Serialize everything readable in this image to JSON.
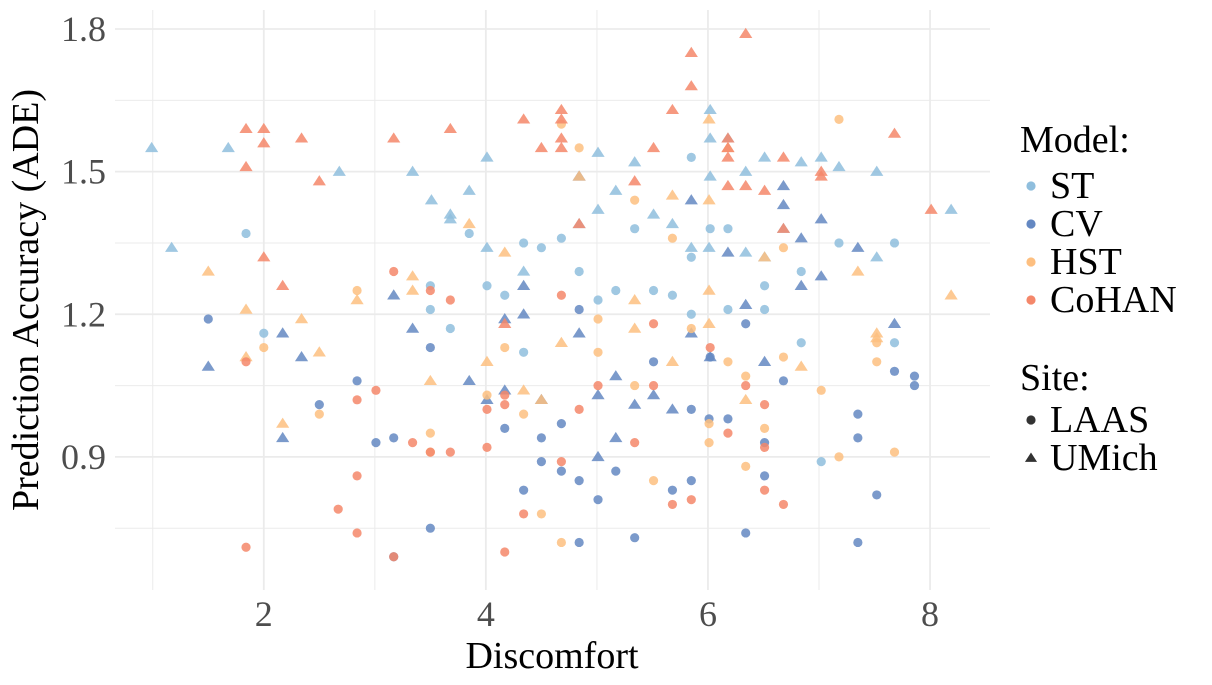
{
  "chart_data": {
    "type": "scatter",
    "xlabel": "Discomfort",
    "ylabel": "Prediction Accuracy (ADE)",
    "xlim": [
      0.66,
      8.54
    ],
    "ylim": [
      0.62,
      1.84
    ],
    "xticks": [
      2,
      4,
      6,
      8
    ],
    "yticks": [
      0.9,
      1.2,
      1.5,
      1.8
    ],
    "xtick_labels": [
      "2",
      "4",
      "6",
      "8"
    ],
    "ytick_labels": [
      "0.9",
      "1.2",
      "1.5",
      "1.8"
    ],
    "grid": true,
    "legend_position": "right",
    "legend": {
      "color_title": "Model:",
      "shape_title": "Site:",
      "shapes": [
        {
          "name": "LAAS",
          "shape": "circle"
        },
        {
          "name": "UMich",
          "shape": "triangle"
        }
      ]
    },
    "series": [
      {
        "name": "ST",
        "color": "#8fbedd",
        "LAAS": [
          [
            1.84,
            1.37
          ],
          [
            2.0,
            1.16
          ],
          [
            3.5,
            1.26
          ],
          [
            3.5,
            1.21
          ],
          [
            3.68,
            1.17
          ],
          [
            3.85,
            1.37
          ],
          [
            4.01,
            1.26
          ],
          [
            4.17,
            1.24
          ],
          [
            4.34,
            1.35
          ],
          [
            4.5,
            1.34
          ],
          [
            4.68,
            1.36
          ],
          [
            4.84,
            1.29
          ],
          [
            5.01,
            1.23
          ],
          [
            5.17,
            1.25
          ],
          [
            5.34,
            1.38
          ],
          [
            5.51,
            1.25
          ],
          [
            5.68,
            1.24
          ],
          [
            5.85,
            1.53
          ],
          [
            5.85,
            1.32
          ],
          [
            6.02,
            1.38
          ],
          [
            6.18,
            1.38
          ],
          [
            6.51,
            1.26
          ],
          [
            6.51,
            1.21
          ],
          [
            7.18,
            1.35
          ],
          [
            7.68,
            1.35
          ],
          [
            7.68,
            1.14
          ],
          [
            7.02,
            0.89
          ],
          [
            6.84,
            1.14
          ],
          [
            6.84,
            1.29
          ],
          [
            4.34,
            1.12
          ],
          [
            6.18,
            1.21
          ],
          [
            5.85,
            1.2
          ]
        ],
        "UMich": [
          [
            0.99,
            1.55
          ],
          [
            1.17,
            1.34
          ],
          [
            1.68,
            1.55
          ],
          [
            2.68,
            1.5
          ],
          [
            3.34,
            1.5
          ],
          [
            3.51,
            1.44
          ],
          [
            3.68,
            1.4
          ],
          [
            3.68,
            1.41
          ],
          [
            3.85,
            1.46
          ],
          [
            4.01,
            1.53
          ],
          [
            4.01,
            1.34
          ],
          [
            4.34,
            1.29
          ],
          [
            5.01,
            1.54
          ],
          [
            5.34,
            1.52
          ],
          [
            5.51,
            1.41
          ],
          [
            5.68,
            1.39
          ],
          [
            6.02,
            1.63
          ],
          [
            6.02,
            1.57
          ],
          [
            6.18,
            1.57
          ],
          [
            6.51,
            1.53
          ],
          [
            6.84,
            1.52
          ],
          [
            7.02,
            1.53
          ],
          [
            7.18,
            1.51
          ],
          [
            7.52,
            1.5
          ],
          [
            8.19,
            1.42
          ],
          [
            7.52,
            1.32
          ],
          [
            6.01,
            1.34
          ],
          [
            6.34,
            1.33
          ],
          [
            5.01,
            1.42
          ],
          [
            5.17,
            1.46
          ],
          [
            5.85,
            1.34
          ],
          [
            6.51,
            1.32
          ],
          [
            6.68,
            1.38
          ],
          [
            6.34,
            1.5
          ],
          [
            6.02,
            1.49
          ],
          [
            4.84,
            1.39
          ]
        ]
      },
      {
        "name": "CV",
        "color": "#6488c2",
        "LAAS": [
          [
            1.5,
            1.19
          ],
          [
            2.84,
            1.06
          ],
          [
            2.5,
            1.01
          ],
          [
            3.01,
            0.93
          ],
          [
            3.17,
            0.94
          ],
          [
            3.17,
            0.69
          ],
          [
            3.5,
            1.13
          ],
          [
            3.5,
            0.75
          ],
          [
            4.17,
            0.96
          ],
          [
            4.34,
            0.83
          ],
          [
            4.5,
            0.94
          ],
          [
            4.5,
            0.89
          ],
          [
            4.68,
            0.87
          ],
          [
            4.68,
            0.97
          ],
          [
            4.84,
            0.85
          ],
          [
            4.84,
            0.72
          ],
          [
            5.01,
            0.81
          ],
          [
            5.17,
            0.87
          ],
          [
            5.34,
            0.73
          ],
          [
            5.51,
            1.1
          ],
          [
            5.68,
            0.83
          ],
          [
            5.85,
            1.0
          ],
          [
            5.85,
            0.85
          ],
          [
            6.01,
            0.98
          ],
          [
            6.02,
            1.11
          ],
          [
            6.18,
            0.98
          ],
          [
            6.34,
            0.74
          ],
          [
            6.51,
            0.93
          ],
          [
            6.51,
            0.86
          ],
          [
            6.68,
            1.06
          ],
          [
            7.35,
            0.99
          ],
          [
            7.35,
            0.94
          ],
          [
            7.35,
            0.72
          ],
          [
            7.52,
            0.82
          ],
          [
            7.68,
            1.08
          ],
          [
            7.86,
            1.07
          ],
          [
            7.86,
            1.05
          ],
          [
            6.34,
            1.18
          ],
          [
            4.84,
            1.21
          ]
        ],
        "UMich": [
          [
            1.5,
            1.09
          ],
          [
            2.17,
            0.94
          ],
          [
            2.17,
            1.16
          ],
          [
            2.34,
            1.11
          ],
          [
            3.17,
            1.24
          ],
          [
            3.34,
            1.17
          ],
          [
            3.85,
            1.06
          ],
          [
            4.01,
            1.02
          ],
          [
            4.17,
            1.04
          ],
          [
            4.34,
            1.2
          ],
          [
            4.34,
            1.26
          ],
          [
            4.5,
            1.02
          ],
          [
            4.84,
            1.16
          ],
          [
            4.84,
            1.49
          ],
          [
            5.01,
            0.9
          ],
          [
            5.01,
            1.03
          ],
          [
            5.17,
            0.94
          ],
          [
            5.17,
            1.07
          ],
          [
            5.34,
            1.01
          ],
          [
            5.51,
            1.03
          ],
          [
            5.68,
            1.0
          ],
          [
            5.85,
            1.44
          ],
          [
            5.85,
            1.16
          ],
          [
            6.02,
            1.11
          ],
          [
            6.18,
            1.33
          ],
          [
            6.34,
            1.22
          ],
          [
            6.68,
            1.47
          ],
          [
            6.68,
            1.43
          ],
          [
            6.84,
            1.26
          ],
          [
            6.84,
            1.36
          ],
          [
            7.02,
            1.4
          ],
          [
            7.35,
            1.34
          ],
          [
            7.68,
            1.18
          ],
          [
            7.02,
            1.28
          ],
          [
            6.51,
            1.1
          ],
          [
            4.17,
            1.19
          ]
        ]
      },
      {
        "name": "HST",
        "color": "#fdbf80",
        "LAAS": [
          [
            2.0,
            1.13
          ],
          [
            2.5,
            0.99
          ],
          [
            2.84,
            1.25
          ],
          [
            3.5,
            0.95
          ],
          [
            3.5,
            0.91
          ],
          [
            4.17,
            1.13
          ],
          [
            4.34,
            0.99
          ],
          [
            4.5,
            0.78
          ],
          [
            4.68,
            1.6
          ],
          [
            4.68,
            0.72
          ],
          [
            4.84,
            1.55
          ],
          [
            5.01,
            1.19
          ],
          [
            5.01,
            1.12
          ],
          [
            5.34,
            1.44
          ],
          [
            5.34,
            1.05
          ],
          [
            5.51,
            0.85
          ],
          [
            5.68,
            1.36
          ],
          [
            5.85,
            1.17
          ],
          [
            6.01,
            0.97
          ],
          [
            6.01,
            0.93
          ],
          [
            6.18,
            1.1
          ],
          [
            6.34,
            0.88
          ],
          [
            6.51,
            0.96
          ],
          [
            6.68,
            1.11
          ],
          [
            6.68,
            1.34
          ],
          [
            7.02,
            1.04
          ],
          [
            7.18,
            0.9
          ],
          [
            7.18,
            1.61
          ],
          [
            7.52,
            1.14
          ],
          [
            7.52,
            1.1
          ],
          [
            7.68,
            0.91
          ],
          [
            4.01,
            1.03
          ],
          [
            6.34,
            1.07
          ]
        ],
        "UMich": [
          [
            1.5,
            1.29
          ],
          [
            1.84,
            1.21
          ],
          [
            1.84,
            1.11
          ],
          [
            2.17,
            0.97
          ],
          [
            2.34,
            1.19
          ],
          [
            2.5,
            1.12
          ],
          [
            2.84,
            1.23
          ],
          [
            3.34,
            1.28
          ],
          [
            3.34,
            1.25
          ],
          [
            3.5,
            1.06
          ],
          [
            3.85,
            1.39
          ],
          [
            4.01,
            1.1
          ],
          [
            4.17,
            1.33
          ],
          [
            4.34,
            1.04
          ],
          [
            4.5,
            1.02
          ],
          [
            4.68,
            1.14
          ],
          [
            4.84,
            1.49
          ],
          [
            5.34,
            1.17
          ],
          [
            5.34,
            1.23
          ],
          [
            5.68,
            1.1
          ],
          [
            5.68,
            1.45
          ],
          [
            6.01,
            1.61
          ],
          [
            6.01,
            1.44
          ],
          [
            6.01,
            1.25
          ],
          [
            6.01,
            1.18
          ],
          [
            6.34,
            1.02
          ],
          [
            6.51,
            1.32
          ],
          [
            6.84,
            1.09
          ],
          [
            7.35,
            1.29
          ],
          [
            7.52,
            1.16
          ],
          [
            7.52,
            1.15
          ],
          [
            8.19,
            1.24
          ],
          [
            6.18,
            1.55
          ]
        ]
      },
      {
        "name": "CoHAN",
        "color": "#f4876a",
        "LAAS": [
          [
            1.84,
            1.1
          ],
          [
            1.84,
            0.71
          ],
          [
            2.67,
            0.79
          ],
          [
            2.84,
            0.86
          ],
          [
            2.84,
            1.02
          ],
          [
            2.84,
            0.74
          ],
          [
            3.01,
            1.04
          ],
          [
            3.17,
            1.29
          ],
          [
            3.17,
            0.69
          ],
          [
            3.34,
            0.93
          ],
          [
            3.5,
            0.91
          ],
          [
            3.5,
            1.25
          ],
          [
            3.68,
            1.23
          ],
          [
            3.68,
            0.91
          ],
          [
            4.01,
            0.92
          ],
          [
            4.01,
            1.0
          ],
          [
            4.17,
            1.03
          ],
          [
            4.17,
            1.01
          ],
          [
            4.17,
            0.7
          ],
          [
            4.34,
            0.78
          ],
          [
            4.68,
            0.89
          ],
          [
            4.68,
            1.24
          ],
          [
            4.84,
            1.0
          ],
          [
            5.01,
            1.05
          ],
          [
            5.34,
            0.93
          ],
          [
            5.51,
            1.18
          ],
          [
            5.51,
            1.05
          ],
          [
            5.68,
            0.8
          ],
          [
            5.85,
            0.81
          ],
          [
            6.02,
            1.13
          ],
          [
            6.18,
            0.95
          ],
          [
            6.34,
            1.05
          ],
          [
            6.51,
            1.01
          ],
          [
            6.51,
            0.83
          ],
          [
            6.68,
            0.8
          ],
          [
            6.51,
            0.92
          ]
        ],
        "UMich": [
          [
            1.84,
            1.59
          ],
          [
            1.84,
            1.51
          ],
          [
            2.0,
            1.59
          ],
          [
            2.0,
            1.56
          ],
          [
            2.0,
            1.32
          ],
          [
            2.17,
            1.26
          ],
          [
            2.34,
            1.57
          ],
          [
            2.5,
            1.48
          ],
          [
            3.17,
            1.57
          ],
          [
            3.68,
            1.59
          ],
          [
            4.34,
            1.61
          ],
          [
            4.5,
            1.55
          ],
          [
            4.68,
            1.63
          ],
          [
            4.68,
            1.61
          ],
          [
            4.68,
            1.57
          ],
          [
            4.68,
            1.55
          ],
          [
            4.84,
            1.39
          ],
          [
            5.34,
            1.48
          ],
          [
            5.51,
            1.55
          ],
          [
            5.68,
            1.63
          ],
          [
            5.85,
            1.75
          ],
          [
            5.85,
            1.68
          ],
          [
            6.18,
            1.57
          ],
          [
            6.18,
            1.55
          ],
          [
            6.18,
            1.53
          ],
          [
            6.34,
            1.47
          ],
          [
            6.51,
            1.46
          ],
          [
            6.68,
            1.53
          ],
          [
            6.68,
            1.38
          ],
          [
            7.02,
            1.49
          ],
          [
            7.02,
            1.5
          ],
          [
            7.68,
            1.58
          ],
          [
            8.01,
            1.42
          ],
          [
            6.34,
            1.79
          ],
          [
            6.18,
            1.47
          ],
          [
            4.17,
            1.18
          ]
        ]
      }
    ]
  }
}
